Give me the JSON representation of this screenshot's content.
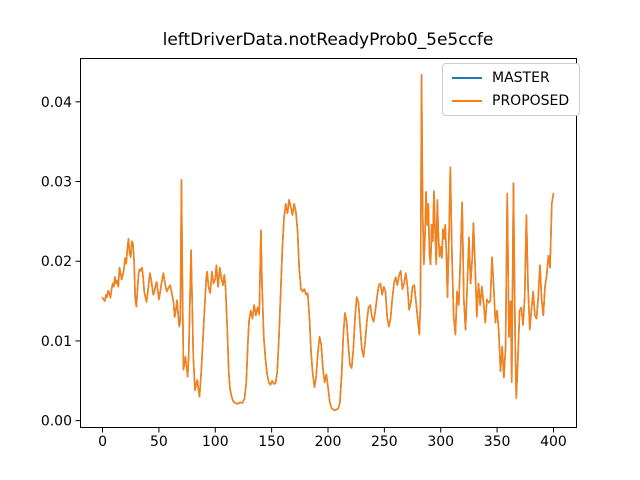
{
  "title": "leftDriverData.notReadyProb0_5e5ccfe",
  "legend": {
    "position": "upper right",
    "entries": [
      {
        "label": "MASTER",
        "color": "#1f77b4"
      },
      {
        "label": "PROPOSED",
        "color": "#ff7f0e"
      }
    ]
  },
  "chart_data": {
    "type": "line",
    "title": "leftDriverData.notReadyProb0_5e5ccfe",
    "xlabel": "",
    "ylabel": "",
    "grid": false,
    "legend_position": "upper right",
    "x_ticks": [
      0,
      50,
      100,
      150,
      200,
      250,
      300,
      350,
      400
    ],
    "x_tick_labels": [
      "0",
      "50",
      "100",
      "150",
      "200",
      "250",
      "300",
      "350",
      "400"
    ],
    "y_ticks": [
      0.0,
      0.01,
      0.02,
      0.03,
      0.04
    ],
    "y_tick_labels": [
      "0.00",
      "0.01",
      "0.02",
      "0.03",
      "0.04"
    ],
    "xlim": [
      -20,
      420
    ],
    "ylim": [
      -0.0008,
      0.0455
    ],
    "series": [
      {
        "name": "MASTER",
        "color": "#1f77b4"
      },
      {
        "name": "PROPOSED",
        "color": "#ff7f0e"
      }
    ],
    "series_overlap_exactly": true,
    "points": [
      [
        0,
        0.0154
      ],
      [
        2,
        0.015
      ],
      [
        3,
        0.0158
      ],
      [
        4,
        0.0155
      ],
      [
        5,
        0.0163
      ],
      [
        6,
        0.016
      ],
      [
        7,
        0.0154
      ],
      [
        8,
        0.0165
      ],
      [
        9,
        0.0172
      ],
      [
        10,
        0.0168
      ],
      [
        11,
        0.018
      ],
      [
        12,
        0.0172
      ],
      [
        13,
        0.0176
      ],
      [
        14,
        0.0168
      ],
      [
        15,
        0.0192
      ],
      [
        16,
        0.0185
      ],
      [
        17,
        0.0177
      ],
      [
        18,
        0.0183
      ],
      [
        19,
        0.019
      ],
      [
        20,
        0.0204
      ],
      [
        21,
        0.0197
      ],
      [
        22,
        0.0215
      ],
      [
        23,
        0.0228
      ],
      [
        24,
        0.021
      ],
      [
        25,
        0.0205
      ],
      [
        26,
        0.0225
      ],
      [
        27,
        0.0222
      ],
      [
        28,
        0.02
      ],
      [
        29,
        0.0152
      ],
      [
        30,
        0.0143
      ],
      [
        31,
        0.0165
      ],
      [
        32,
        0.0185
      ],
      [
        33,
        0.019
      ],
      [
        34,
        0.0188
      ],
      [
        35,
        0.0192
      ],
      [
        36,
        0.018
      ],
      [
        37,
        0.0162
      ],
      [
        38,
        0.0155
      ],
      [
        39,
        0.0149
      ],
      [
        40,
        0.016
      ],
      [
        41,
        0.0172
      ],
      [
        42,
        0.0185
      ],
      [
        43,
        0.0178
      ],
      [
        44,
        0.0168
      ],
      [
        45,
        0.0158
      ],
      [
        46,
        0.0162
      ],
      [
        47,
        0.017
      ],
      [
        48,
        0.0174
      ],
      [
        49,
        0.0163
      ],
      [
        50,
        0.0152
      ],
      [
        51,
        0.016
      ],
      [
        52,
        0.017
      ],
      [
        53,
        0.0178
      ],
      [
        54,
        0.0185
      ],
      [
        55,
        0.0175
      ],
      [
        56,
        0.0168
      ],
      [
        57,
        0.0162
      ],
      [
        58,
        0.0165
      ],
      [
        60,
        0.017
      ],
      [
        61,
        0.0163
      ],
      [
        62,
        0.0156
      ],
      [
        63,
        0.0148
      ],
      [
        64,
        0.013
      ],
      [
        65,
        0.0138
      ],
      [
        66,
        0.0151
      ],
      [
        67,
        0.0135
      ],
      [
        68,
        0.0118
      ],
      [
        69,
        0.0125
      ],
      [
        70,
        0.0302
      ],
      [
        70.8,
        0.018
      ],
      [
        71.8,
        0.0064
      ],
      [
        73,
        0.0075
      ],
      [
        73.5,
        0.008
      ],
      [
        74.5,
        0.0068
      ],
      [
        75.5,
        0.0055
      ],
      [
        76.5,
        0.0085
      ],
      [
        77.5,
        0.015
      ],
      [
        78.5,
        0.0214
      ],
      [
        79.5,
        0.015
      ],
      [
        80.5,
        0.008
      ],
      [
        82,
        0.0038
      ],
      [
        83,
        0.0045
      ],
      [
        84,
        0.0051
      ],
      [
        85,
        0.004
      ],
      [
        86,
        0.003
      ],
      [
        87.5,
        0.006
      ],
      [
        89,
        0.01
      ],
      [
        90.5,
        0.014
      ],
      [
        92,
        0.018
      ],
      [
        92.8,
        0.0187
      ],
      [
        94,
        0.0168
      ],
      [
        95.5,
        0.016
      ],
      [
        97,
        0.0187
      ],
      [
        98.5,
        0.0172
      ],
      [
        100,
        0.0178
      ],
      [
        101,
        0.0195
      ],
      [
        102.5,
        0.0168
      ],
      [
        104,
        0.0192
      ],
      [
        105.5,
        0.0178
      ],
      [
        107,
        0.017
      ],
      [
        108,
        0.0183
      ],
      [
        109,
        0.017
      ],
      [
        110.5,
        0.012
      ],
      [
        112,
        0.006
      ],
      [
        113,
        0.0041
      ],
      [
        114.5,
        0.003
      ],
      [
        116,
        0.0024
      ],
      [
        118,
        0.0022
      ],
      [
        120,
        0.0021
      ],
      [
        122,
        0.0023
      ],
      [
        124,
        0.0022
      ],
      [
        126,
        0.0028
      ],
      [
        127.5,
        0.0048
      ],
      [
        129,
        0.01
      ],
      [
        130,
        0.0126
      ],
      [
        131.5,
        0.0138
      ],
      [
        133,
        0.0128
      ],
      [
        134.5,
        0.0145
      ],
      [
        136,
        0.0132
      ],
      [
        137.5,
        0.0142
      ],
      [
        139,
        0.0133
      ],
      [
        140.5,
        0.0239
      ],
      [
        141.5,
        0.017
      ],
      [
        143,
        0.0105
      ],
      [
        144.5,
        0.0078
      ],
      [
        146,
        0.0058
      ],
      [
        147.5,
        0.0048
      ],
      [
        149,
        0.0045
      ],
      [
        150.5,
        0.005
      ],
      [
        152,
        0.0046
      ],
      [
        153.5,
        0.0047
      ],
      [
        155,
        0.0062
      ],
      [
        156.5,
        0.0105
      ],
      [
        158,
        0.016
      ],
      [
        159.5,
        0.0216
      ],
      [
        161,
        0.0255
      ],
      [
        162.5,
        0.0272
      ],
      [
        164,
        0.026
      ],
      [
        165.5,
        0.0277
      ],
      [
        167,
        0.0268
      ],
      [
        168.5,
        0.0258
      ],
      [
        170,
        0.0272
      ],
      [
        171.5,
        0.0262
      ],
      [
        173,
        0.0238
      ],
      [
        174.5,
        0.019
      ],
      [
        176,
        0.0165
      ],
      [
        177.5,
        0.0162
      ],
      [
        179,
        0.0165
      ],
      [
        180.5,
        0.0158
      ],
      [
        182,
        0.016
      ],
      [
        183.5,
        0.013
      ],
      [
        185,
        0.0085
      ],
      [
        186.5,
        0.0058
      ],
      [
        188,
        0.0042
      ],
      [
        189.5,
        0.0055
      ],
      [
        191,
        0.0085
      ],
      [
        192.5,
        0.0105
      ],
      [
        194,
        0.0095
      ],
      [
        195.5,
        0.0065
      ],
      [
        197,
        0.0048
      ],
      [
        198.5,
        0.0058
      ],
      [
        200,
        0.0042
      ],
      [
        201.5,
        0.0024
      ],
      [
        203,
        0.0016
      ],
      [
        204.5,
        0.0014
      ],
      [
        206,
        0.0013
      ],
      [
        207.5,
        0.0014
      ],
      [
        209,
        0.0015
      ],
      [
        210.5,
        0.0022
      ],
      [
        212,
        0.0055
      ],
      [
        213.5,
        0.0105
      ],
      [
        215,
        0.0135
      ],
      [
        216.5,
        0.0125
      ],
      [
        218,
        0.0095
      ],
      [
        219.5,
        0.007
      ],
      [
        221,
        0.0066
      ],
      [
        222.5,
        0.009
      ],
      [
        224,
        0.013
      ],
      [
        225.5,
        0.0155
      ],
      [
        227,
        0.0148
      ],
      [
        228.5,
        0.0118
      ],
      [
        230,
        0.009
      ],
      [
        231.5,
        0.008
      ],
      [
        233,
        0.01
      ],
      [
        234.5,
        0.0125
      ],
      [
        236,
        0.0142
      ],
      [
        237.5,
        0.0145
      ],
      [
        239,
        0.013
      ],
      [
        240.5,
        0.0124
      ],
      [
        242,
        0.0138
      ],
      [
        243.5,
        0.0155
      ],
      [
        245,
        0.017
      ],
      [
        246.5,
        0.0172
      ],
      [
        248,
        0.0158
      ],
      [
        249.5,
        0.0168
      ],
      [
        251,
        0.0162
      ],
      [
        252.5,
        0.013
      ],
      [
        254,
        0.0118
      ],
      [
        255.5,
        0.0128
      ],
      [
        257,
        0.0152
      ],
      [
        258.5,
        0.0172
      ],
      [
        260,
        0.018
      ],
      [
        261.5,
        0.017
      ],
      [
        263,
        0.0182
      ],
      [
        264.5,
        0.0188
      ],
      [
        266,
        0.0165
      ],
      [
        267.5,
        0.0172
      ],
      [
        269,
        0.0185
      ],
      [
        270.5,
        0.0168
      ],
      [
        272,
        0.0139
      ],
      [
        273.5,
        0.0148
      ],
      [
        275,
        0.0168
      ],
      [
        276.5,
        0.017
      ],
      [
        278,
        0.015
      ],
      [
        279.5,
        0.0128
      ],
      [
        281,
        0.0108
      ],
      [
        282,
        0.0145
      ],
      [
        283,
        0.0434
      ],
      [
        284,
        0.026
      ],
      [
        285,
        0.0196
      ],
      [
        286,
        0.023
      ],
      [
        287,
        0.0287
      ],
      [
        288,
        0.0245
      ],
      [
        289,
        0.0272
      ],
      [
        290,
        0.021
      ],
      [
        291,
        0.0196
      ],
      [
        292,
        0.0246
      ],
      [
        293,
        0.0225
      ],
      [
        294,
        0.0288
      ],
      [
        295,
        0.024
      ],
      [
        296,
        0.0196
      ],
      [
        297,
        0.0277
      ],
      [
        298,
        0.023
      ],
      [
        299,
        0.0206
      ],
      [
        300,
        0.0218
      ],
      [
        301,
        0.0204
      ],
      [
        302,
        0.024
      ],
      [
        303,
        0.0228
      ],
      [
        304,
        0.0246
      ],
      [
        305,
        0.021
      ],
      [
        306,
        0.0155
      ],
      [
        307.5,
        0.0242
      ],
      [
        308.5,
        0.0318
      ],
      [
        310,
        0.0205
      ],
      [
        311.5,
        0.013
      ],
      [
        313,
        0.0108
      ],
      [
        314.5,
        0.0162
      ],
      [
        316,
        0.0145
      ],
      [
        317.5,
        0.0205
      ],
      [
        319,
        0.0274
      ],
      [
        320.5,
        0.0152
      ],
      [
        322,
        0.0114
      ],
      [
        323.5,
        0.0168
      ],
      [
        325,
        0.023
      ],
      [
        326.5,
        0.0172
      ],
      [
        328,
        0.0205
      ],
      [
        329,
        0.0248
      ],
      [
        330.5,
        0.0195
      ],
      [
        332,
        0.013
      ],
      [
        333.5,
        0.0172
      ],
      [
        335,
        0.0145
      ],
      [
        336.5,
        0.0168
      ],
      [
        338,
        0.0148
      ],
      [
        339.5,
        0.0123
      ],
      [
        341,
        0.0152
      ],
      [
        342.5,
        0.0148
      ],
      [
        344,
        0.015
      ],
      [
        345.5,
        0.0205
      ],
      [
        347,
        0.0168
      ],
      [
        348.5,
        0.0123
      ],
      [
        350,
        0.0138
      ],
      [
        351.5,
        0.0112
      ],
      [
        353,
        0.0062
      ],
      [
        354.5,
        0.0093
      ],
      [
        356,
        0.0054
      ],
      [
        357.5,
        0.009
      ],
      [
        359,
        0.0285
      ],
      [
        360.5,
        0.0105
      ],
      [
        362,
        0.015
      ],
      [
        363,
        0.0048
      ],
      [
        364.5,
        0.0298
      ],
      [
        366,
        0.0105
      ],
      [
        367,
        0.0028
      ],
      [
        368.5,
        0.008
      ],
      [
        370,
        0.0138
      ],
      [
        371.5,
        0.0142
      ],
      [
        373,
        0.012
      ],
      [
        374.5,
        0.0155
      ],
      [
        376,
        0.0258
      ],
      [
        377.5,
        0.0165
      ],
      [
        379,
        0.0114
      ],
      [
        380.5,
        0.014
      ],
      [
        382,
        0.0162
      ],
      [
        383.5,
        0.0132
      ],
      [
        385,
        0.0128
      ],
      [
        386.5,
        0.0155
      ],
      [
        388,
        0.0195
      ],
      [
        389.5,
        0.0152
      ],
      [
        391,
        0.0132
      ],
      [
        392.5,
        0.0168
      ],
      [
        394,
        0.0182
      ],
      [
        395.5,
        0.0207
      ],
      [
        397,
        0.0192
      ],
      [
        398.5,
        0.0272
      ],
      [
        400,
        0.0285
      ]
    ]
  }
}
